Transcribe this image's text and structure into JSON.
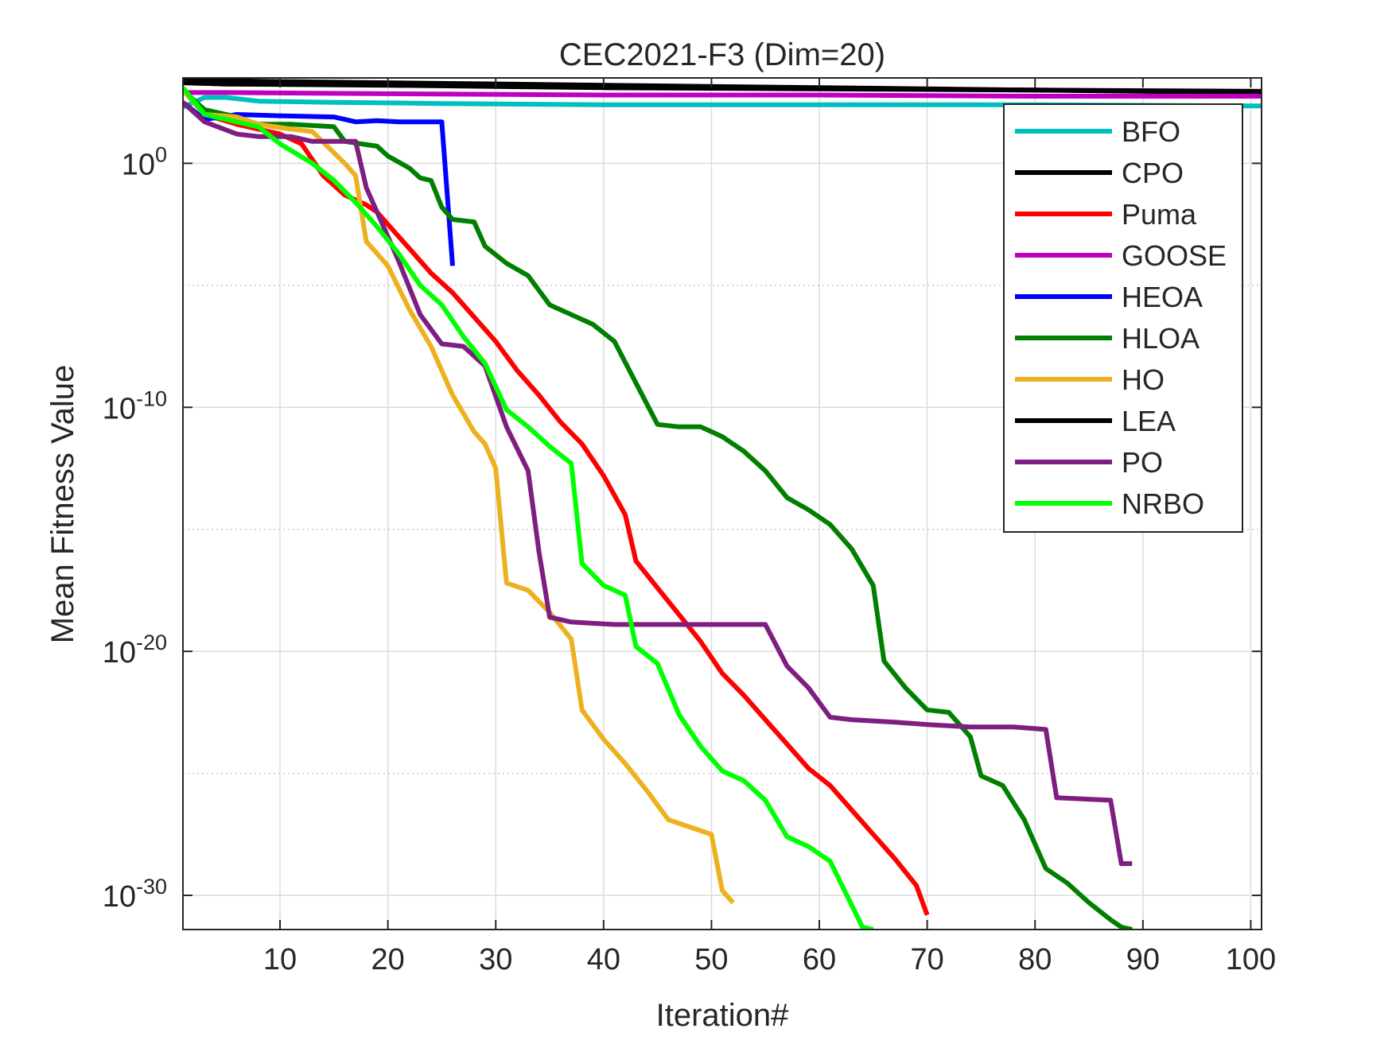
{
  "chart_data": {
    "type": "line",
    "title": "CEC2021-F3 (Dim=20)",
    "xlabel": "Iteration#",
    "ylabel": "Mean Fitness Value",
    "yscale": "log",
    "xlim": [
      1,
      101
    ],
    "ylim_log10": [
      -31.4,
      3.5
    ],
    "grid": true,
    "legend_position": "top-right",
    "x_ticks": [
      10,
      20,
      30,
      40,
      50,
      60,
      70,
      80,
      90,
      100
    ],
    "x_tick_labels": [
      "10",
      "20",
      "30",
      "40",
      "50",
      "60",
      "70",
      "80",
      "90",
      "100"
    ],
    "y_ticks_log10": [
      0,
      -10,
      -20,
      -30
    ],
    "y_tick_base": "10",
    "y_tick_exponents": [
      "0",
      "-10",
      "-20",
      "-30"
    ],
    "series": [
      {
        "name": "BFO",
        "color": "#00BFBF",
        "points": [
          [
            1,
            2.3
          ],
          [
            3,
            2.7
          ],
          [
            5,
            2.7
          ],
          [
            8,
            2.55
          ],
          [
            15,
            2.5
          ],
          [
            25,
            2.45
          ],
          [
            40,
            2.4
          ],
          [
            60,
            2.4
          ],
          [
            80,
            2.4
          ],
          [
            101,
            2.35
          ]
        ]
      },
      {
        "name": "CPO",
        "color": "#000000",
        "points": [
          [
            1,
            3.5
          ],
          [
            3,
            3.4
          ],
          [
            10,
            3.35
          ],
          [
            20,
            3.3
          ],
          [
            40,
            3.2
          ],
          [
            60,
            3.1
          ],
          [
            80,
            3.0
          ],
          [
            101,
            2.9
          ]
        ]
      },
      {
        "name": "Puma",
        "color": "#FF0000",
        "points": [
          [
            1,
            3.0
          ],
          [
            3,
            2.0
          ],
          [
            6,
            1.6
          ],
          [
            10,
            1.2
          ],
          [
            12,
            0.8
          ],
          [
            14,
            -0.5
          ],
          [
            16,
            -1.3
          ],
          [
            18,
            -1.7
          ],
          [
            19,
            -2.0
          ],
          [
            20,
            -2.5
          ],
          [
            22,
            -3.5
          ],
          [
            24,
            -4.5
          ],
          [
            26,
            -5.3
          ],
          [
            28,
            -6.3
          ],
          [
            30,
            -7.3
          ],
          [
            32,
            -8.5
          ],
          [
            34,
            -9.5
          ],
          [
            36,
            -10.6
          ],
          [
            38,
            -11.5
          ],
          [
            40,
            -12.8
          ],
          [
            42,
            -14.4
          ],
          [
            43,
            -16.3
          ],
          [
            45,
            -17.4
          ],
          [
            47,
            -18.5
          ],
          [
            49,
            -19.6
          ],
          [
            51,
            -20.9
          ],
          [
            53,
            -21.8
          ],
          [
            55,
            -22.8
          ],
          [
            57,
            -23.8
          ],
          [
            59,
            -24.8
          ],
          [
            61,
            -25.5
          ],
          [
            63,
            -26.5
          ],
          [
            65,
            -27.5
          ],
          [
            67,
            -28.5
          ],
          [
            69,
            -29.6
          ],
          [
            70,
            -30.8
          ]
        ]
      },
      {
        "name": "GOOSE",
        "color": "#BF00BF",
        "points": [
          [
            1,
            2.9
          ],
          [
            5,
            2.9
          ],
          [
            20,
            2.85
          ],
          [
            40,
            2.8
          ],
          [
            60,
            2.8
          ],
          [
            80,
            2.75
          ],
          [
            101,
            2.75
          ]
        ]
      },
      {
        "name": "HEOA",
        "color": "#0000FF",
        "points": [
          [
            1,
            2.5
          ],
          [
            3,
            1.8
          ],
          [
            6,
            2.0
          ],
          [
            10,
            1.95
          ],
          [
            15,
            1.9
          ],
          [
            17,
            1.7
          ],
          [
            19,
            1.75
          ],
          [
            21,
            1.7
          ],
          [
            25,
            1.7
          ],
          [
            26,
            -4.2
          ]
        ]
      },
      {
        "name": "HLOA",
        "color": "#007F00",
        "points": [
          [
            1,
            3.0
          ],
          [
            3,
            2.2
          ],
          [
            6,
            1.9
          ],
          [
            8,
            1.6
          ],
          [
            11,
            1.6
          ],
          [
            15,
            1.5
          ],
          [
            16,
            0.9
          ],
          [
            19,
            0.7
          ],
          [
            20,
            0.3
          ],
          [
            22,
            -0.2
          ],
          [
            23,
            -0.6
          ],
          [
            24,
            -0.7
          ],
          [
            25,
            -1.8
          ],
          [
            26,
            -2.3
          ],
          [
            28,
            -2.4
          ],
          [
            29,
            -3.4
          ],
          [
            31,
            -4.1
          ],
          [
            33,
            -4.6
          ],
          [
            35,
            -5.8
          ],
          [
            37,
            -6.2
          ],
          [
            39,
            -6.6
          ],
          [
            41,
            -7.3
          ],
          [
            43,
            -9.0
          ],
          [
            45,
            -10.7
          ],
          [
            47,
            -10.8
          ],
          [
            49,
            -10.8
          ],
          [
            51,
            -11.2
          ],
          [
            53,
            -11.8
          ],
          [
            55,
            -12.6
          ],
          [
            57,
            -13.7
          ],
          [
            59,
            -14.2
          ],
          [
            61,
            -14.8
          ],
          [
            63,
            -15.8
          ],
          [
            65,
            -17.3
          ],
          [
            66,
            -20.4
          ],
          [
            68,
            -21.5
          ],
          [
            70,
            -22.4
          ],
          [
            72,
            -22.5
          ],
          [
            74,
            -23.5
          ],
          [
            75,
            -25.1
          ],
          [
            77,
            -25.5
          ],
          [
            79,
            -26.9
          ],
          [
            81,
            -28.9
          ],
          [
            83,
            -29.5
          ],
          [
            85,
            -30.3
          ],
          [
            87,
            -31.0
          ],
          [
            88,
            -31.3
          ],
          [
            89,
            -31.4
          ]
        ]
      },
      {
        "name": "HO",
        "color": "#EDB120",
        "points": [
          [
            1,
            3.0
          ],
          [
            3,
            2.0
          ],
          [
            6,
            1.9
          ],
          [
            8,
            1.6
          ],
          [
            11,
            1.4
          ],
          [
            13,
            1.3
          ],
          [
            16,
            0.0
          ],
          [
            17,
            -0.5
          ],
          [
            18,
            -3.2
          ],
          [
            20,
            -4.2
          ],
          [
            22,
            -6.0
          ],
          [
            24,
            -7.5
          ],
          [
            26,
            -9.5
          ],
          [
            28,
            -11.0
          ],
          [
            29,
            -11.5
          ],
          [
            30,
            -12.5
          ],
          [
            31,
            -17.2
          ],
          [
            33,
            -17.5
          ],
          [
            35,
            -18.4
          ],
          [
            37,
            -19.5
          ],
          [
            38,
            -22.4
          ],
          [
            40,
            -23.6
          ],
          [
            42,
            -24.6
          ],
          [
            44,
            -25.7
          ],
          [
            46,
            -26.9
          ],
          [
            48,
            -27.2
          ],
          [
            50,
            -27.5
          ],
          [
            51,
            -29.8
          ],
          [
            52,
            -30.3
          ]
        ]
      },
      {
        "name": "LEA",
        "color": "#000000",
        "points": [
          [
            1,
            3.3
          ],
          [
            5,
            3.25
          ],
          [
            20,
            3.2
          ],
          [
            40,
            3.1
          ],
          [
            60,
            3.05
          ],
          [
            80,
            3.0
          ],
          [
            101,
            2.95
          ]
        ]
      },
      {
        "name": "PO",
        "color": "#7E1E80",
        "points": [
          [
            1,
            2.5
          ],
          [
            3,
            1.7
          ],
          [
            6,
            1.2
          ],
          [
            8,
            1.1
          ],
          [
            11,
            1.1
          ],
          [
            13,
            0.9
          ],
          [
            17,
            0.9
          ],
          [
            18,
            -1.0
          ],
          [
            19,
            -2.0
          ],
          [
            21,
            -4.0
          ],
          [
            23,
            -6.2
          ],
          [
            25,
            -7.4
          ],
          [
            27,
            -7.5
          ],
          [
            29,
            -8.3
          ],
          [
            31,
            -10.8
          ],
          [
            33,
            -12.6
          ],
          [
            34,
            -15.9
          ],
          [
            35,
            -18.6
          ],
          [
            37,
            -18.8
          ],
          [
            41,
            -18.9
          ],
          [
            45,
            -18.9
          ],
          [
            50,
            -18.9
          ],
          [
            55,
            -18.9
          ],
          [
            57,
            -20.6
          ],
          [
            59,
            -21.5
          ],
          [
            61,
            -22.7
          ],
          [
            63,
            -22.8
          ],
          [
            67,
            -22.9
          ],
          [
            70,
            -23.0
          ],
          [
            74,
            -23.1
          ],
          [
            78,
            -23.1
          ],
          [
            81,
            -23.2
          ],
          [
            82,
            -26.0
          ],
          [
            87,
            -26.1
          ],
          [
            88,
            -28.7
          ],
          [
            89,
            -28.7
          ]
        ]
      },
      {
        "name": "NRBO",
        "color": "#00FF00",
        "points": [
          [
            1,
            3.1
          ],
          [
            3,
            2.0
          ],
          [
            5,
            1.8
          ],
          [
            8,
            1.5
          ],
          [
            10,
            0.8
          ],
          [
            13,
            0.0
          ],
          [
            15,
            -0.7
          ],
          [
            17,
            -1.6
          ],
          [
            19,
            -2.6
          ],
          [
            21,
            -3.7
          ],
          [
            23,
            -5.0
          ],
          [
            25,
            -5.8
          ],
          [
            27,
            -7.1
          ],
          [
            29,
            -8.2
          ],
          [
            31,
            -10.1
          ],
          [
            33,
            -10.8
          ],
          [
            35,
            -11.6
          ],
          [
            37,
            -12.3
          ],
          [
            38,
            -16.4
          ],
          [
            40,
            -17.3
          ],
          [
            42,
            -17.7
          ],
          [
            43,
            -19.8
          ],
          [
            45,
            -20.5
          ],
          [
            47,
            -22.6
          ],
          [
            49,
            -23.9
          ],
          [
            51,
            -24.9
          ],
          [
            53,
            -25.3
          ],
          [
            55,
            -26.1
          ],
          [
            57,
            -27.6
          ],
          [
            59,
            -28.0
          ],
          [
            61,
            -28.6
          ],
          [
            62,
            -29.5
          ],
          [
            64,
            -31.3
          ],
          [
            65,
            -31.4
          ]
        ]
      }
    ]
  }
}
